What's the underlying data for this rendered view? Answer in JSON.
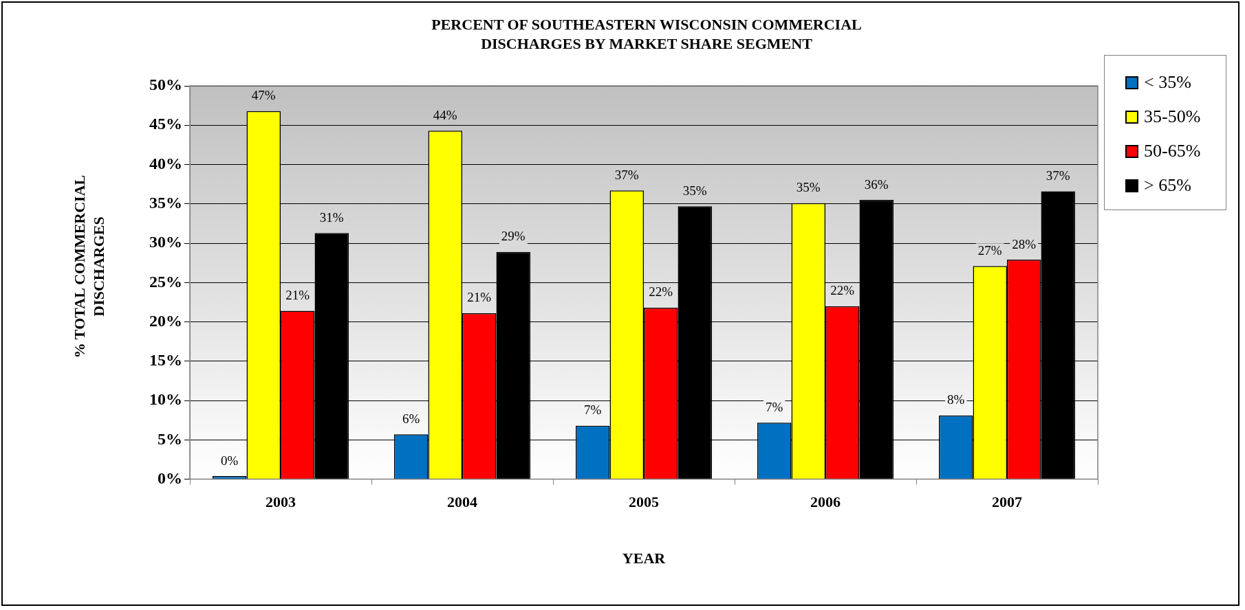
{
  "chart_data": {
    "type": "bar",
    "title": "PERCENT OF SOUTHEASTERN WISCONSIN COMMERCIAL DISCHARGES BY MARKET SHARE SEGMENT",
    "xlabel": "YEAR",
    "ylabel": "% TOTAL COMMERCIAL DISCHARGES",
    "categories": [
      "2003",
      "2004",
      "2005",
      "2006",
      "2007"
    ],
    "series": [
      {
        "name": "< 35%",
        "color": "#0070c0",
        "values": [
          0.4,
          5.7,
          6.8,
          7.2,
          8.1
        ],
        "value_labels": [
          "0%",
          "6%",
          "7%",
          "7%",
          "8%"
        ]
      },
      {
        "name": "35-50%",
        "color": "#ffff00",
        "values": [
          46.8,
          44.3,
          36.7,
          35.1,
          27.1
        ],
        "value_labels": [
          "47%",
          "44%",
          "37%",
          "35%",
          "27%"
        ]
      },
      {
        "name": "50-65%",
        "color": "#ff0000",
        "values": [
          21.4,
          21.1,
          21.8,
          22.0,
          27.9
        ],
        "value_labels": [
          "21%",
          "21%",
          "22%",
          "22%",
          "28%"
        ]
      },
      {
        "name": "> 65%",
        "color": "#000000",
        "values": [
          31.3,
          28.9,
          34.7,
          35.5,
          36.6
        ],
        "value_labels": [
          "31%",
          "29%",
          "35%",
          "36%",
          "37%"
        ]
      }
    ],
    "ylim": [
      0,
      50
    ],
    "yticks": [
      {
        "value": 0,
        "label": "0%"
      },
      {
        "value": 5,
        "label": "5%"
      },
      {
        "value": 10,
        "label": "10%"
      },
      {
        "value": 15,
        "label": "15%"
      },
      {
        "value": 20,
        "label": "20%"
      },
      {
        "value": 25,
        "label": "25%"
      },
      {
        "value": 30,
        "label": "30%"
      },
      {
        "value": 35,
        "label": "35%"
      },
      {
        "value": 40,
        "label": "40%"
      },
      {
        "value": 45,
        "label": "45%"
      },
      {
        "value": 50,
        "label": "50%"
      }
    ],
    "grid": "y",
    "legend": "top right"
  }
}
